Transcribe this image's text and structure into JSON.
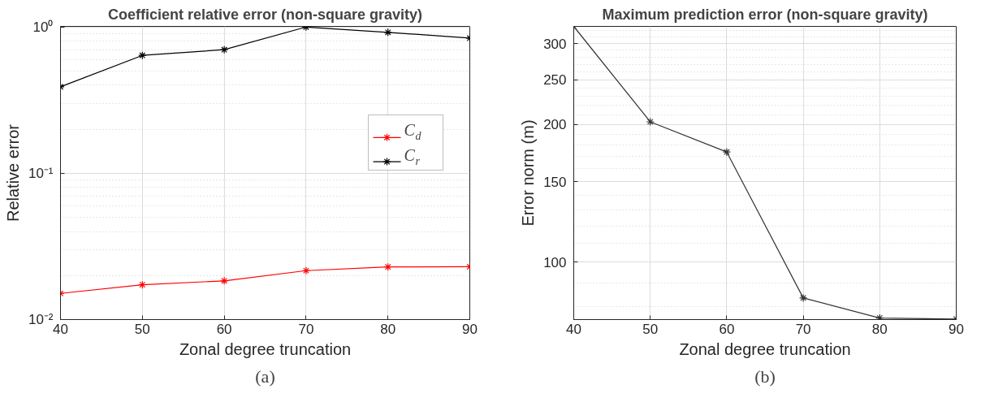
{
  "chart_data": [
    {
      "type": "line",
      "title": "Coefficient relative error (non-square gravity)",
      "xlabel": "Zonal degree truncation",
      "ylabel": "Relative error",
      "x": [
        40,
        50,
        60,
        70,
        80,
        90
      ],
      "series": [
        {
          "name": "C$_{d}$",
          "color": "#ff0000",
          "values": [
            0.0151,
            0.0173,
            0.0184,
            0.0216,
            0.0229,
            0.023
          ]
        },
        {
          "name": "C$_{r}$",
          "color": "#000000",
          "values": [
            0.39,
            0.64,
            0.7,
            1.0,
            0.92,
            0.84
          ]
        }
      ],
      "log": true,
      "xlim": [
        40,
        90
      ],
      "xticks": [
        40,
        50,
        60,
        70,
        80,
        90
      ],
      "ylim": [
        0.01,
        1.01
      ],
      "yticks": [
        {
          "value": 0.01,
          "label": "10⁻²"
        },
        {
          "value": 0.1,
          "label": "10⁻¹"
        },
        {
          "value": 1,
          "label": "10⁰"
        }
      ],
      "grid": true,
      "legend": "right",
      "marker": "cross",
      "line_style": "solid",
      "annotations": [
        "(a)"
      ]
    },
    {
      "type": "line",
      "title": "Maximum prediction error (non-square gravity)",
      "xlabel": "Zonal degree truncation",
      "ylabel": "Error norm (m)",
      "x": [
        40,
        50,
        60,
        70,
        80,
        90
      ],
      "series": [
        {
          "color": "#333333",
          "values": [
            327,
            202.5,
            174,
            83.6,
            75.6,
            75.2
          ]
        }
      ],
      "log": true,
      "xlim": [
        40,
        90
      ],
      "xticks": [
        40,
        50,
        60,
        70,
        80,
        90
      ],
      "ylim": [
        75,
        327
      ],
      "yticks": [
        100,
        150,
        200,
        250,
        300
      ],
      "grid": true,
      "legend": false,
      "marker": "cross",
      "line_style": "solid",
      "annotations": [
        "(b)"
      ]
    }
  ]
}
